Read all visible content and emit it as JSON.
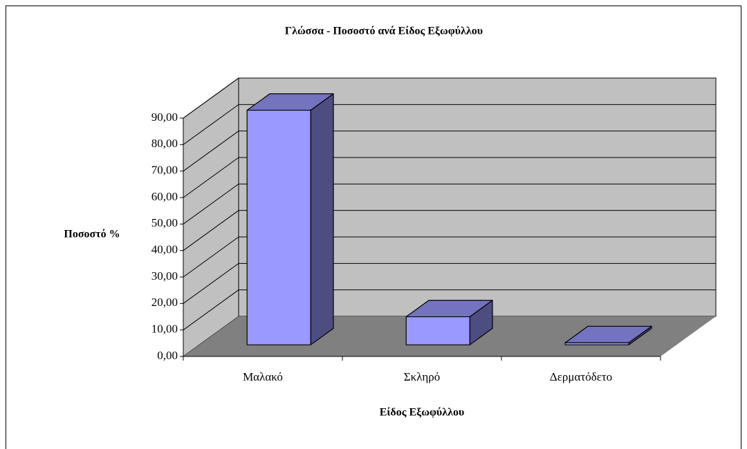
{
  "chart_data": {
    "type": "bar3d",
    "title": "Γλώσσα - Ποσοστό ανά Είδος Εξωφύλλου",
    "y_label": "Ποσοστό %",
    "x_label": "Είδος Εξωφύλλου",
    "categories": [
      "Μαλακό",
      "Σκληρό",
      "Δερματόδετο"
    ],
    "values": [
      88.6,
      10.6,
      0.8
    ],
    "color": "#9999ff",
    "ylim": [
      0,
      90
    ],
    "yticks": [
      {
        "value": 0,
        "label": "0,00"
      },
      {
        "value": 10,
        "label": "10,00"
      },
      {
        "value": 20,
        "label": "20,00"
      },
      {
        "value": 30,
        "label": "30,00"
      },
      {
        "value": 40,
        "label": "40,00"
      },
      {
        "value": 50,
        "label": "50,00"
      },
      {
        "value": 60,
        "label": "60,00"
      },
      {
        "value": 70,
        "label": "70,00"
      },
      {
        "value": 80,
        "label": "80,00"
      },
      {
        "value": 90,
        "label": "90,00"
      }
    ],
    "grid": true
  }
}
